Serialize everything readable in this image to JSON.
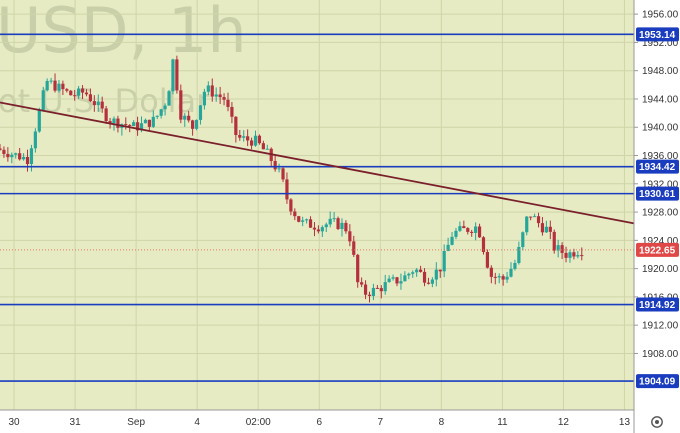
{
  "watermark": {
    "symbol": "USD, 1h",
    "subtitle": "ot U.S. Dollar"
  },
  "colors": {
    "plot_bg": "#e6ebc3",
    "axis_bg": "#ffffff",
    "grid": "#cfd5a8",
    "up": "#26a69a",
    "down": "#b5303d",
    "level": "#1a3dbf",
    "trend": "#7a1f2b",
    "current": "#e04848",
    "current_line": "#e07a5f"
  },
  "chart_data": {
    "type": "candlestick",
    "ylim": [
      1900,
      1958
    ],
    "y_ticks": [
      1956,
      1952,
      1948,
      1944,
      1940,
      1936,
      1932,
      1928,
      1924,
      1920,
      1916,
      1912,
      1908
    ],
    "x_tick_labels": [
      "30",
      "31",
      "Sep",
      "4",
      "02:00",
      "6",
      "7",
      "8",
      "11",
      "12",
      "13"
    ],
    "x_range": [
      0,
      100
    ],
    "horizontal_levels": [
      {
        "value": 1953.14,
        "label": "1953.14"
      },
      {
        "value": 1934.42,
        "label": "1934.42"
      },
      {
        "value": 1930.61,
        "label": "1930.61"
      },
      {
        "value": 1914.92,
        "label": "1914.92"
      },
      {
        "value": 1904.09,
        "label": "1904.09"
      }
    ],
    "current_price": {
      "value": 1922.65,
      "label": "1922.65"
    },
    "trendline": {
      "x1": 0,
      "y1": 1943.5,
      "x2": 100,
      "y2": 1926.4
    },
    "anchors": [
      [
        0,
        1937.0
      ],
      [
        5,
        1935.5
      ],
      [
        8,
        1946.5
      ],
      [
        12,
        1944.5
      ],
      [
        14,
        1945.0
      ],
      [
        18,
        1941.0
      ],
      [
        22,
        1940.0
      ],
      [
        25,
        1941.0
      ],
      [
        27,
        1944.0
      ],
      [
        28,
        1950.0
      ],
      [
        29,
        1942.0
      ],
      [
        31,
        1940.0
      ],
      [
        33,
        1945.5
      ],
      [
        36,
        1944.0
      ],
      [
        38,
        1938.5
      ],
      [
        41,
        1938.0
      ],
      [
        43,
        1936.0
      ],
      [
        45,
        1933.0
      ],
      [
        46,
        1929.5
      ],
      [
        48,
        1926.5
      ],
      [
        51,
        1926.0
      ],
      [
        53,
        1926.5
      ],
      [
        55,
        1926.0
      ],
      [
        56,
        1924.0
      ],
      [
        57,
        1918.0
      ],
      [
        58,
        1916.5
      ],
      [
        60,
        1917.0
      ],
      [
        62,
        1918.0
      ],
      [
        64,
        1918.5
      ],
      [
        66,
        1920.0
      ],
      [
        68,
        1918.5
      ],
      [
        70,
        1920.0
      ],
      [
        72,
        1925.0
      ],
      [
        74,
        1925.5
      ],
      [
        76,
        1926.0
      ],
      [
        78,
        1919.0
      ],
      [
        80,
        1918.5
      ],
      [
        82,
        1921.0
      ],
      [
        84,
        1928.0
      ],
      [
        86,
        1926.0
      ],
      [
        87,
        1925.5
      ],
      [
        88,
        1923.0
      ],
      [
        90,
        1922.0
      ],
      [
        92,
        1922.65
      ]
    ]
  }
}
